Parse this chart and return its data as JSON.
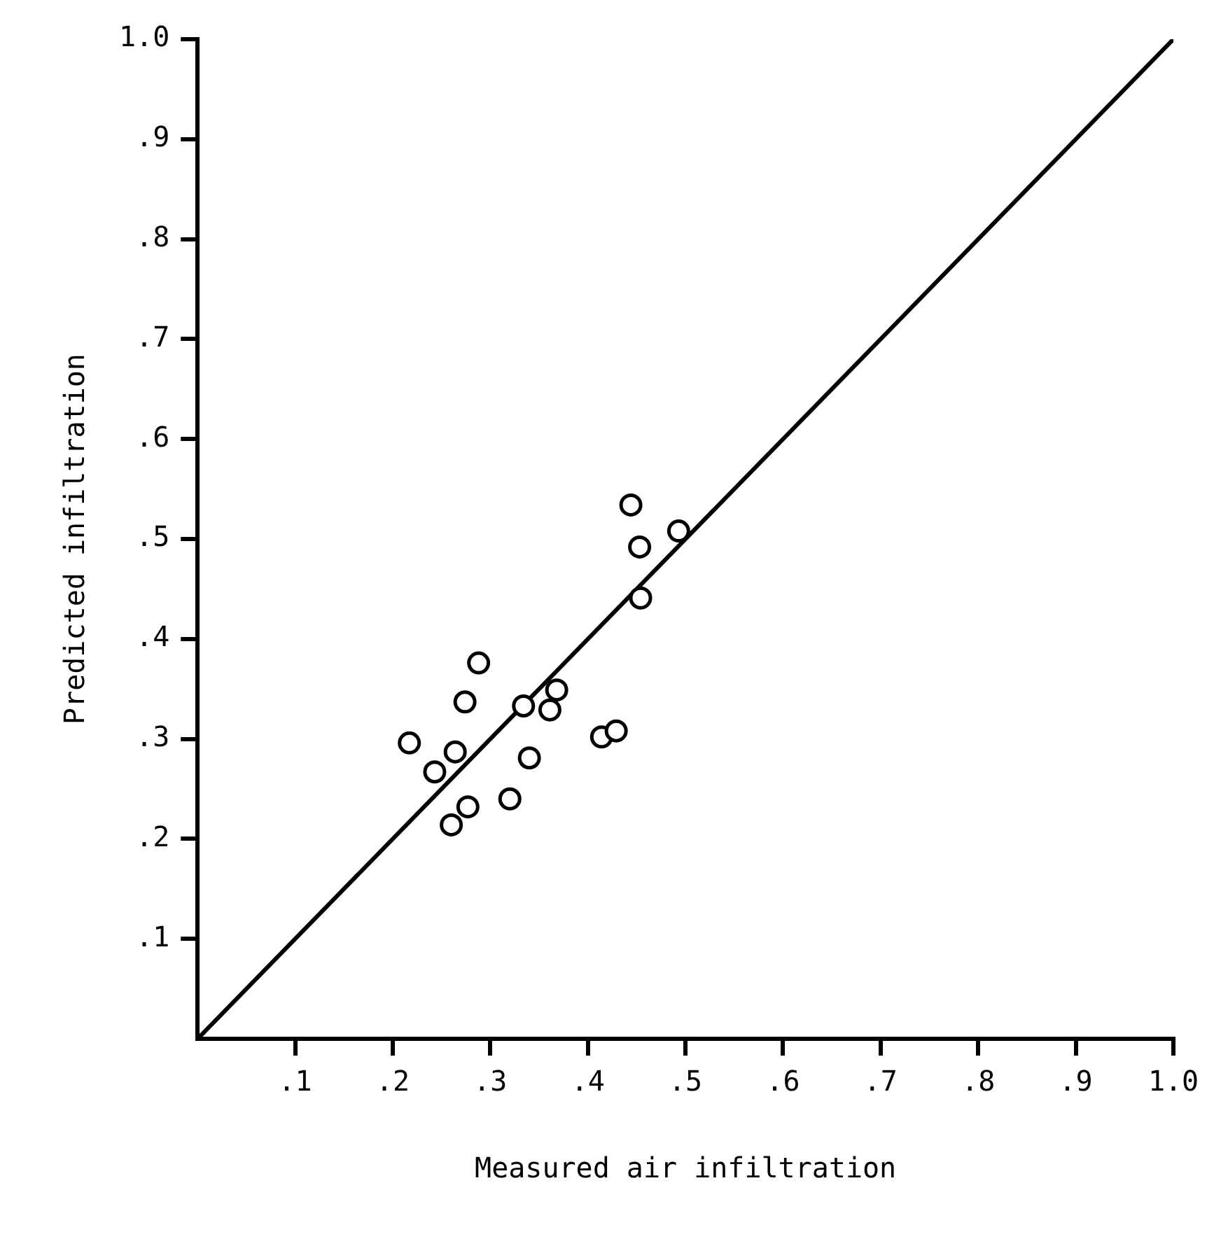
{
  "chart_data": {
    "type": "scatter",
    "xlabel": "Measured air infiltration",
    "ylabel": "Predicted infiltration",
    "xlim": [
      0,
      1
    ],
    "ylim": [
      0,
      1
    ],
    "xticks": [
      {
        "value": 0.1,
        "label": ".1"
      },
      {
        "value": 0.2,
        "label": ".2"
      },
      {
        "value": 0.3,
        "label": ".3"
      },
      {
        "value": 0.4,
        "label": ".4"
      },
      {
        "value": 0.5,
        "label": ".5"
      },
      {
        "value": 0.6,
        "label": ".6"
      },
      {
        "value": 0.7,
        "label": ".7"
      },
      {
        "value": 0.8,
        "label": ".8"
      },
      {
        "value": 0.9,
        "label": ".9"
      },
      {
        "value": 1.0,
        "label": "1.0"
      }
    ],
    "yticks": [
      {
        "value": 0.1,
        "label": ".1"
      },
      {
        "value": 0.2,
        "label": ".2"
      },
      {
        "value": 0.3,
        "label": ".3"
      },
      {
        "value": 0.4,
        "label": ".4"
      },
      {
        "value": 0.5,
        "label": ".5"
      },
      {
        "value": 0.6,
        "label": ".6"
      },
      {
        "value": 0.7,
        "label": ".7"
      },
      {
        "value": 0.8,
        "label": ".8"
      },
      {
        "value": 0.9,
        "label": ".9"
      },
      {
        "value": 1.0,
        "label": "1.0"
      }
    ],
    "series": [
      {
        "type": "scatter",
        "color": "#000000",
        "marker": "circle",
        "x": [
          0.444,
          0.493,
          0.453,
          0.454,
          0.288,
          0.274,
          0.334,
          0.368,
          0.361,
          0.217,
          0.264,
          0.243,
          0.34,
          0.414,
          0.429,
          0.277,
          0.32,
          0.26
        ],
        "values": [
          0.534,
          0.508,
          0.492,
          0.441,
          0.376,
          0.337,
          0.333,
          0.349,
          0.329,
          0.296,
          0.287,
          0.267,
          0.281,
          0.302,
          0.308,
          0.232,
          0.24,
          0.214
        ]
      },
      {
        "type": "line",
        "color": "#000000",
        "marker": "none",
        "line_style": "solid",
        "x": [
          0,
          1
        ],
        "values": [
          0,
          1
        ]
      }
    ]
  }
}
